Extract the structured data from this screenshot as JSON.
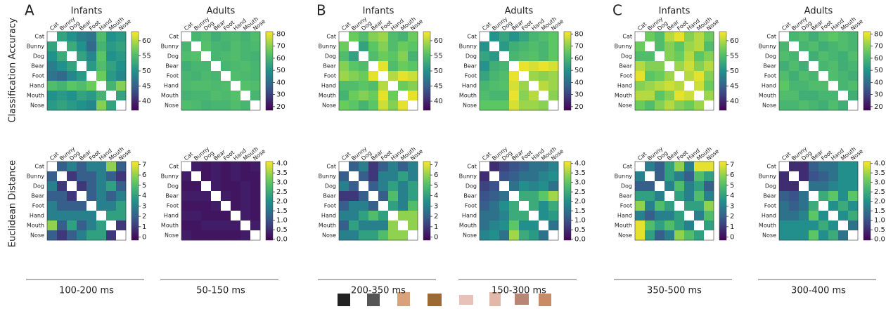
{
  "row_titles": [
    "Classification Accuracy",
    "Euclidean Distance"
  ],
  "chart_data": [
    {
      "type": "heatmap",
      "panel": "A",
      "title": "Infants",
      "colormap": "viridis",
      "categories": [
        "Cat",
        "Bunny",
        "Dog",
        "Bear",
        "Foot",
        "Hand",
        "Mouth",
        "Nose"
      ],
      "values": [
        [
          52,
          50,
          48,
          47,
          55,
          50,
          51
        ],
        [
          53,
          50,
          46,
          54,
          51,
          52
        ],
        [
          52,
          49,
          56,
          50,
          51
        ],
        [
          51,
          55,
          52,
          50
        ],
        [
          57,
          51,
          49
        ],
        [
          54,
          58
        ],
        [
          52
        ]
      ],
      "clim": [
        37,
        63
      ],
      "cticks": [
        40,
        45,
        50,
        55,
        60
      ]
    },
    {
      "type": "heatmap",
      "title": "Adults",
      "colormap": "viridis",
      "categories": [
        "Cat",
        "Bunny",
        "Dog",
        "Bear",
        "Foot",
        "Hand",
        "Mouth",
        "Nose"
      ],
      "values": [
        [
          60,
          62,
          58,
          60,
          61,
          59,
          62
        ],
        [
          63,
          60,
          59,
          62,
          60,
          61
        ],
        [
          60,
          61,
          62,
          60,
          59
        ],
        [
          60,
          61,
          62,
          60
        ],
        [
          62,
          61,
          60
        ],
        [
          63,
          62
        ],
        [
          60
        ]
      ],
      "clim": [
        17,
        82
      ],
      "cticks": [
        20,
        30,
        40,
        50,
        60,
        70,
        80
      ]
    },
    {
      "type": "heatmap",
      "panel": "B",
      "title": "Infants",
      "colormap": "viridis",
      "categories": [
        "Cat",
        "Bunny",
        "Dog",
        "Bear",
        "Foot",
        "Hand",
        "Mouth",
        "Nose"
      ],
      "values": [
        [
          57,
          55,
          58,
          59,
          55,
          54,
          57
        ],
        [
          52,
          56,
          58,
          55,
          57,
          56
        ],
        [
          55,
          57,
          56,
          58,
          54
        ],
        [
          62,
          55,
          57,
          56
        ],
        [
          60,
          62,
          61
        ],
        [
          57,
          58
        ],
        [
          62
        ]
      ],
      "clim": [
        37,
        63
      ],
      "cticks": [
        40,
        45,
        50,
        55,
        60
      ]
    },
    {
      "type": "heatmap",
      "title": "Adults",
      "colormap": "viridis",
      "categories": [
        "Cat",
        "Bunny",
        "Dog",
        "Bear",
        "Foot",
        "Hand",
        "Mouth",
        "Nose"
      ],
      "values": [
        [
          50,
          55,
          50,
          55,
          60,
          62,
          65
        ],
        [
          52,
          58,
          60,
          62,
          60,
          65
        ],
        [
          60,
          62,
          63,
          60,
          65
        ],
        [
          80,
          78,
          80,
          78
        ],
        [
          72,
          70,
          72
        ],
        [
          75,
          72
        ],
        [
          70
        ]
      ],
      "clim": [
        17,
        82
      ],
      "cticks": [
        20,
        30,
        40,
        50,
        60,
        70,
        80
      ]
    },
    {
      "type": "heatmap",
      "panel": "C",
      "title": "Infants",
      "colormap": "viridis",
      "categories": [
        "Cat",
        "Bunny",
        "Dog",
        "Bear",
        "Foot",
        "Hand",
        "Mouth",
        "Nose"
      ],
      "values": [
        [
          57,
          55,
          60,
          62,
          58,
          60,
          57
        ],
        [
          55,
          58,
          56,
          59,
          60,
          55
        ],
        [
          58,
          57,
          60,
          56,
          58
        ],
        [
          59,
          61,
          58,
          60
        ],
        [
          60,
          62,
          58
        ],
        [
          61,
          57
        ],
        [
          59
        ]
      ],
      "clim": [
        37,
        63
      ],
      "cticks": [
        40,
        45,
        50,
        55,
        60
      ]
    },
    {
      "type": "heatmap",
      "title": "Adults",
      "colormap": "viridis",
      "categories": [
        "Cat",
        "Bunny",
        "Dog",
        "Bear",
        "Foot",
        "Hand",
        "Mouth",
        "Nose"
      ],
      "values": [
        [
          60,
          62,
          58,
          62,
          65,
          62,
          60
        ],
        [
          60,
          62,
          58,
          60,
          62,
          60
        ],
        [
          58,
          62,
          60,
          58,
          62
        ],
        [
          60,
          62,
          58,
          60
        ],
        [
          62,
          60,
          58
        ],
        [
          60,
          62
        ],
        [
          58
        ]
      ],
      "clim": [
        17,
        82
      ],
      "cticks": [
        20,
        30,
        40,
        50,
        60,
        70,
        80
      ]
    },
    {
      "type": "heatmap",
      "caption": "100-200 ms",
      "colormap": "viridis",
      "categories": [
        "Cat",
        "Bunny",
        "Dog",
        "Bear",
        "Foot",
        "Hand",
        "Mouth",
        "Nose"
      ],
      "values": [
        [
          2,
          3,
          2,
          3,
          3,
          6,
          2
        ],
        [
          1,
          2,
          2,
          3,
          2,
          1
        ],
        [
          1,
          2,
          3,
          4,
          2
        ],
        [
          2,
          3,
          2,
          3
        ],
        [
          3,
          3,
          4
        ],
        [
          4,
          4
        ],
        [
          1
        ]
      ],
      "clim": [
        -0.3,
        7.3
      ],
      "cticks": [
        0,
        1,
        2,
        3,
        4,
        5,
        6,
        7
      ]
    },
    {
      "type": "heatmap",
      "caption": "50-150 ms",
      "colormap": "viridis",
      "categories": [
        "Cat",
        "Bunny",
        "Dog",
        "Bear",
        "Foot",
        "Hand",
        "Mouth",
        "Nose"
      ],
      "values": [
        [
          0.3,
          0.2,
          0.3,
          0.2,
          0.3,
          0.2,
          0.3
        ],
        [
          0.2,
          0.3,
          0.2,
          0.3,
          0.2,
          0.2
        ],
        [
          0.3,
          0.2,
          0.2,
          0.3,
          0.2
        ],
        [
          0.3,
          0.2,
          0.3,
          0.2
        ],
        [
          0.2,
          0.3,
          0.2
        ],
        [
          0.3,
          0.2
        ],
        [
          0.3
        ]
      ],
      "clim": [
        -0.05,
        4.1
      ],
      "cticks": [
        {
          "value": 0,
          "label": "0.0"
        },
        {
          "value": 0.5,
          "label": "0.5"
        },
        {
          "value": 1,
          "label": "1.0"
        },
        {
          "value": 1.5,
          "label": "1.5"
        },
        {
          "value": 2,
          "label": "2.0"
        },
        {
          "value": 2.5,
          "label": "2.5"
        },
        {
          "value": 3,
          "label": "3.0"
        },
        {
          "value": 3.5,
          "label": "3.5"
        },
        {
          "value": 4,
          "label": "4.0"
        }
      ]
    },
    {
      "type": "heatmap",
      "caption": "200-350 ms",
      "colormap": "viridis",
      "categories": [
        "Cat",
        "Bunny",
        "Dog",
        "Bear",
        "Foot",
        "Hand",
        "Mouth",
        "Nose"
      ],
      "values": [
        [
          2,
          3,
          1,
          2,
          3,
          2,
          3
        ],
        [
          2,
          1,
          3,
          3,
          4,
          3
        ],
        [
          2,
          3,
          4,
          3,
          4
        ],
        [
          2,
          5,
          3,
          4
        ],
        [
          4,
          3,
          5
        ],
        [
          6,
          6
        ],
        [
          6
        ]
      ],
      "clim": [
        -0.3,
        7.3
      ],
      "cticks": [
        0,
        1,
        2,
        3,
        4,
        5,
        6,
        7
      ]
    },
    {
      "type": "heatmap",
      "caption": "150-300 ms",
      "colormap": "viridis",
      "categories": [
        "Cat",
        "Bunny",
        "Dog",
        "Bear",
        "Foot",
        "Hand",
        "Mouth",
        "Nose"
      ],
      "values": [
        [
          0.5,
          0.8,
          1.0,
          1.2,
          1.5,
          1.5,
          1.8
        ],
        [
          1.0,
          1.2,
          1.5,
          1.5,
          1.8,
          2.0
        ],
        [
          1.5,
          2.0,
          1.8,
          2.0,
          1.5
        ],
        [
          2.5,
          2.5,
          3.0,
          3.5
        ],
        [
          2.5,
          2.0,
          2.5
        ],
        [
          2.0,
          2.2
        ],
        [
          1.5
        ]
      ],
      "clim": [
        -0.05,
        4.1
      ],
      "cticks": [
        {
          "value": 0,
          "label": "0.0"
        },
        {
          "value": 0.5,
          "label": "0.5"
        },
        {
          "value": 1,
          "label": "1.0"
        },
        {
          "value": 1.5,
          "label": "1.5"
        },
        {
          "value": 2,
          "label": "2.0"
        },
        {
          "value": 2.5,
          "label": "2.5"
        },
        {
          "value": 3,
          "label": "3.0"
        },
        {
          "value": 3.5,
          "label": "3.5"
        },
        {
          "value": 4,
          "label": "4.0"
        }
      ]
    },
    {
      "type": "heatmap",
      "caption": "350-500 ms",
      "colormap": "viridis",
      "categories": [
        "Cat",
        "Bunny",
        "Dog",
        "Bear",
        "Foot",
        "Hand",
        "Mouth",
        "Nose"
      ],
      "values": [
        [
          3,
          2,
          4,
          6,
          3,
          7,
          7
        ],
        [
          2,
          4,
          3,
          2,
          5,
          4
        ],
        [
          3,
          5,
          3,
          4,
          2
        ],
        [
          4,
          3,
          5,
          3
        ],
        [
          4,
          4,
          6
        ],
        [
          3,
          5
        ],
        [
          4
        ]
      ],
      "clim": [
        -0.3,
        7.3
      ],
      "cticks": [
        0,
        1,
        2,
        3,
        4,
        5,
        6,
        7
      ]
    },
    {
      "type": "heatmap",
      "caption": "300-400 ms",
      "colormap": "viridis",
      "categories": [
        "Cat",
        "Bunny",
        "Dog",
        "Bear",
        "Foot",
        "Hand",
        "Mouth",
        "Nose"
      ],
      "values": [
        [
          0.5,
          0.5,
          1.2,
          1.5,
          1.5,
          2,
          2
        ],
        [
          0.5,
          1.0,
          1.2,
          1.5,
          2,
          2
        ],
        [
          1.5,
          1.5,
          1.8,
          2,
          2
        ],
        [
          2.5,
          3,
          2,
          3
        ],
        [
          2,
          2.5,
          2
        ],
        [
          2,
          2.5
        ],
        [
          1.5
        ]
      ],
      "clim": [
        -0.05,
        4.1
      ],
      "cticks": [
        {
          "value": 0,
          "label": "0.0"
        },
        {
          "value": 0.5,
          "label": "0.5"
        },
        {
          "value": 1,
          "label": "1.0"
        },
        {
          "value": 1.5,
          "label": "1.5"
        },
        {
          "value": 2,
          "label": "2.0"
        },
        {
          "value": 2.5,
          "label": "2.5"
        },
        {
          "value": 3,
          "label": "3.0"
        },
        {
          "value": 3.5,
          "label": "3.5"
        },
        {
          "value": 4,
          "label": "4.0"
        }
      ]
    }
  ]
}
